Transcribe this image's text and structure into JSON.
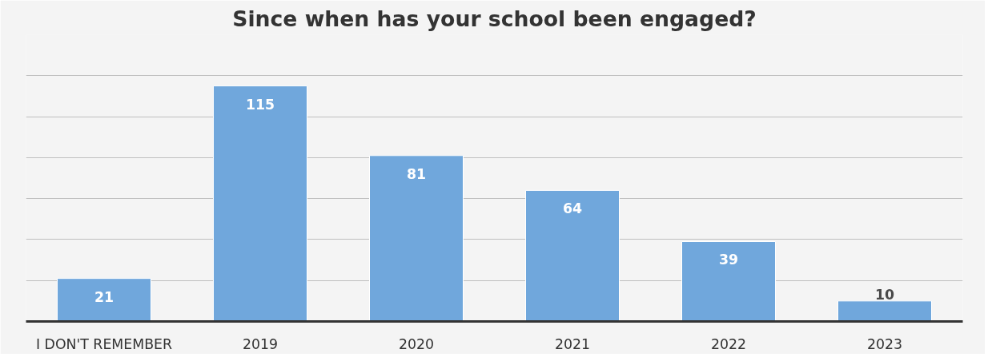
{
  "chart_data": {
    "type": "bar",
    "title": "Since when has your school been engaged?",
    "categories": [
      "I DON'T REMEMBER",
      "2019",
      "2020",
      "2021",
      "2022",
      "2023"
    ],
    "values": [
      21,
      115,
      81,
      64,
      39,
      10
    ],
    "color": "#70a7dc",
    "ylim": [
      0,
      140
    ],
    "yticks": [
      {
        "value": 0,
        "label": null
      },
      {
        "value": 20,
        "label": null
      },
      {
        "value": 40,
        "label": null
      },
      {
        "value": 60,
        "label": null
      },
      {
        "value": 80,
        "label": null
      },
      {
        "value": 100,
        "label": null
      },
      {
        "value": 120,
        "label": null
      },
      {
        "value": 140,
        "label": null
      }
    ],
    "grid": "y",
    "tick_labels": "x",
    "data_labels": true
  }
}
